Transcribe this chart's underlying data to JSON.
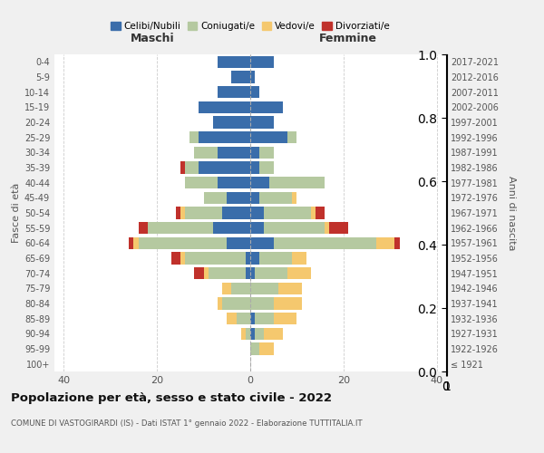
{
  "age_groups": [
    "100+",
    "95-99",
    "90-94",
    "85-89",
    "80-84",
    "75-79",
    "70-74",
    "65-69",
    "60-64",
    "55-59",
    "50-54",
    "45-49",
    "40-44",
    "35-39",
    "30-34",
    "25-29",
    "20-24",
    "15-19",
    "10-14",
    "5-9",
    "0-4"
  ],
  "birth_years": [
    "≤ 1921",
    "1922-1926",
    "1927-1931",
    "1932-1936",
    "1937-1941",
    "1942-1946",
    "1947-1951",
    "1952-1956",
    "1957-1961",
    "1962-1966",
    "1967-1971",
    "1972-1976",
    "1977-1981",
    "1982-1986",
    "1987-1991",
    "1992-1996",
    "1997-2001",
    "2002-2006",
    "2007-2011",
    "2012-2016",
    "2017-2021"
  ],
  "male": {
    "celibi": [
      0,
      0,
      0,
      0,
      0,
      0,
      1,
      1,
      5,
      8,
      6,
      5,
      7,
      11,
      7,
      11,
      8,
      11,
      7,
      4,
      7
    ],
    "coniugati": [
      0,
      0,
      1,
      3,
      6,
      4,
      8,
      13,
      19,
      14,
      8,
      5,
      7,
      3,
      5,
      2,
      0,
      0,
      0,
      0,
      0
    ],
    "vedovi": [
      0,
      0,
      1,
      2,
      1,
      2,
      1,
      1,
      1,
      0,
      1,
      0,
      0,
      0,
      0,
      0,
      0,
      0,
      0,
      0,
      0
    ],
    "divorziati": [
      0,
      0,
      0,
      0,
      0,
      0,
      2,
      2,
      1,
      2,
      1,
      0,
      0,
      1,
      0,
      0,
      0,
      0,
      0,
      0,
      0
    ]
  },
  "female": {
    "nubili": [
      0,
      0,
      1,
      1,
      0,
      0,
      1,
      2,
      5,
      3,
      3,
      2,
      4,
      2,
      2,
      8,
      5,
      7,
      2,
      1,
      5
    ],
    "coniugate": [
      0,
      2,
      2,
      4,
      5,
      6,
      7,
      7,
      22,
      13,
      10,
      7,
      12,
      3,
      3,
      2,
      0,
      0,
      0,
      0,
      0
    ],
    "vedove": [
      0,
      3,
      4,
      5,
      6,
      5,
      5,
      3,
      4,
      1,
      1,
      1,
      0,
      0,
      0,
      0,
      0,
      0,
      0,
      0,
      0
    ],
    "divorziate": [
      0,
      0,
      0,
      0,
      0,
      0,
      0,
      0,
      1,
      4,
      2,
      0,
      0,
      0,
      0,
      0,
      0,
      0,
      0,
      0,
      0
    ]
  },
  "colors": {
    "celibi": "#3A6DAA",
    "coniugati": "#B5C9A0",
    "vedovi": "#F5C86E",
    "divorziati": "#C0312B"
  },
  "xlim": 42,
  "title": "Popolazione per età, sesso e stato civile - 2022",
  "subtitle": "COMUNE DI VASTOGIRARDI (IS) - Dati ISTAT 1° gennaio 2022 - Elaborazione TUTTITALIA.IT",
  "xlabel_left": "Maschi",
  "xlabel_right": "Femmine",
  "ylabel_left": "Fasce di età",
  "ylabel_right": "Anni di nascita",
  "bg_color": "#f0f0f0",
  "plot_bg": "#ffffff"
}
